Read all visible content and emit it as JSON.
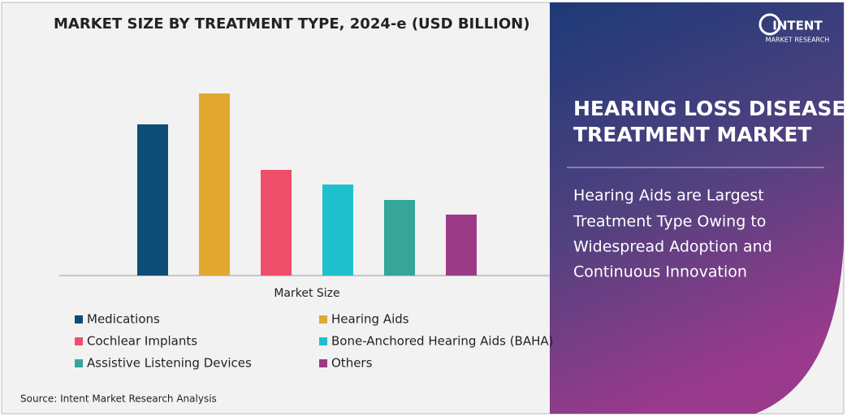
{
  "chart_data": {
    "type": "bar",
    "title": "MARKET SIZE BY TREATMENT TYPE, 2024-e (USD BILLION)",
    "categories": [
      "Market Size"
    ],
    "series": [
      {
        "name": "Medications",
        "color": "#0e4d78",
        "values": [
          186
        ]
      },
      {
        "name": "Hearing Aids",
        "color": "#e2a731",
        "values": [
          224
        ]
      },
      {
        "name": "Cochlear Implants",
        "color": "#ef4e6b",
        "values": [
          130
        ]
      },
      {
        "name": "Bone-Anchored Hearing Aids (BAHA)",
        "color": "#1fc0cd",
        "values": [
          112
        ]
      },
      {
        "name": "Assistive Listening Devices",
        "color": "#35a699",
        "values": [
          93
        ]
      },
      {
        "name": "Others",
        "color": "#9c3b87",
        "values": [
          75
        ]
      }
    ],
    "ylim": [
      0,
      250
    ]
  },
  "source": "Source: Intent Market Research Analysis",
  "logo": {
    "name": "INTENT",
    "tagline": "MARKET RESEARCH"
  },
  "panel": {
    "title": [
      "HEARING LOSS DISEASE",
      "TREATMENT MARKET"
    ],
    "subtitle": [
      "Hearing Aids are Largest",
      "Treatment Type Owing to",
      "Widespread Adoption and",
      "Continuous Innovation"
    ]
  }
}
